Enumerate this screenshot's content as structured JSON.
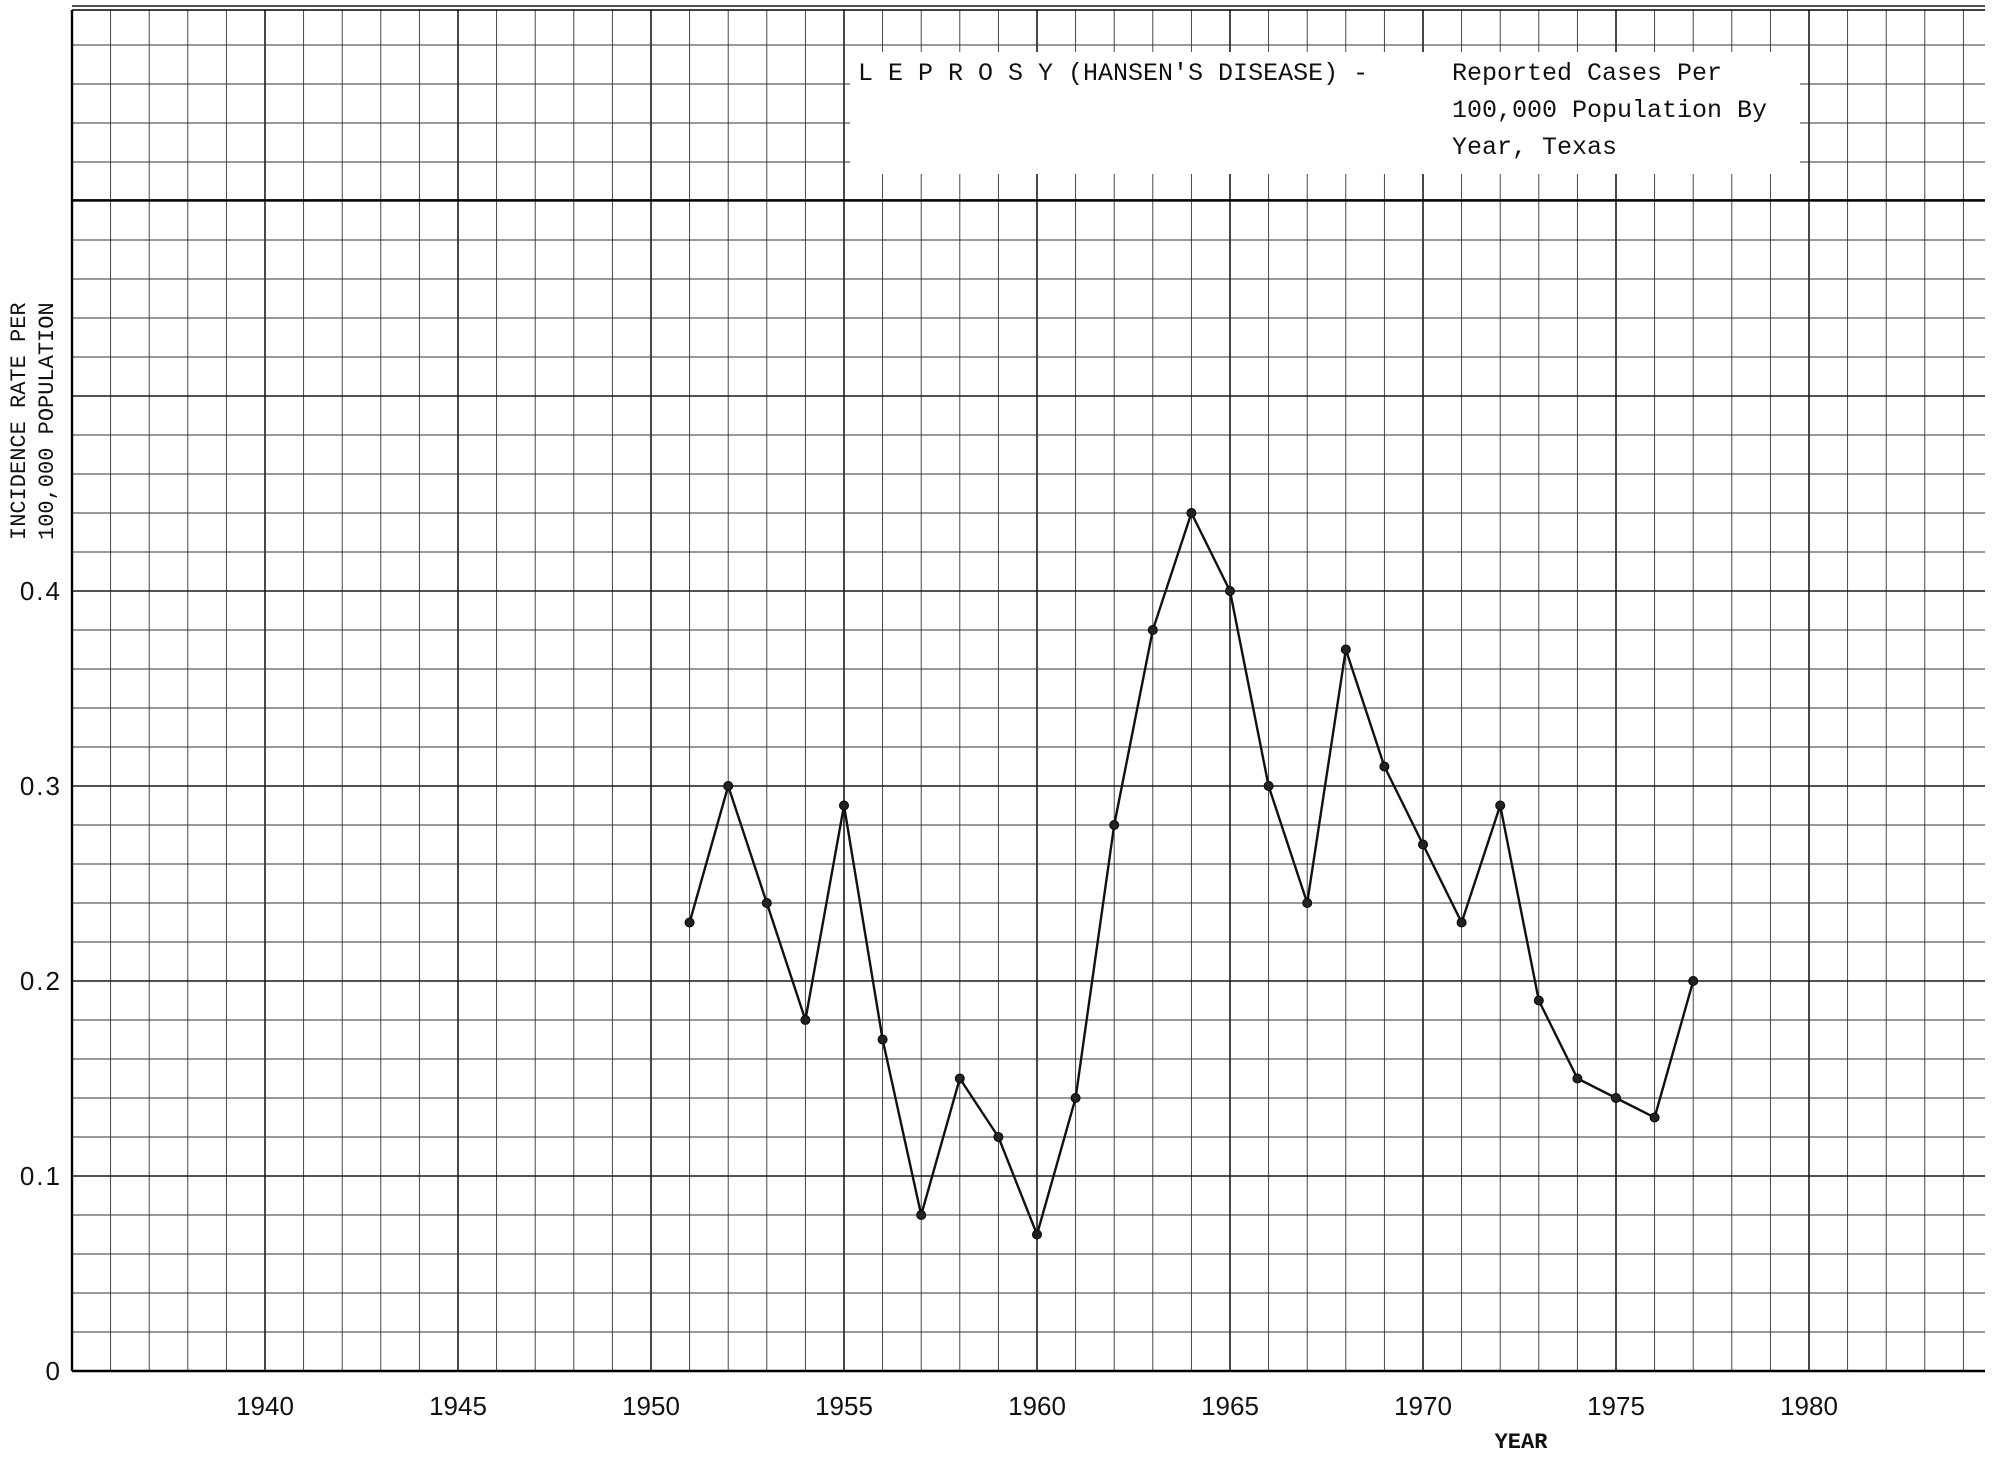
{
  "chart_data": {
    "type": "line",
    "title": "L E P R O S Y (HANSEN'S DISEASE)  -",
    "subtitle_lines": [
      "Reported Cases Per",
      "100,000 Population By",
      "Year, Texas"
    ],
    "xlabel": "YEAR",
    "ylabel_lines": [
      "INCIDENCE RATE PER",
      "100,000 POPULATION"
    ],
    "x_ticks": [
      1940,
      1945,
      1950,
      1955,
      1960,
      1965,
      1970,
      1975,
      1980
    ],
    "y_ticks": [
      0,
      0.1,
      0.2,
      0.3,
      0.4
    ],
    "y_tick_labels": [
      "0",
      "0.1",
      "0.2",
      "0.3",
      "0.4"
    ],
    "xlim": [
      1935,
      1985
    ],
    "ylim": [
      0,
      0.7
    ],
    "grid": true,
    "x": [
      1951,
      1952,
      1953,
      1954,
      1955,
      1956,
      1957,
      1958,
      1959,
      1960,
      1961,
      1962,
      1963,
      1964,
      1965,
      1966,
      1967,
      1968,
      1969,
      1970,
      1971,
      1972,
      1973,
      1974,
      1975,
      1976,
      1977
    ],
    "values": [
      0.23,
      0.3,
      0.24,
      0.18,
      0.29,
      0.17,
      0.08,
      0.15,
      0.12,
      0.07,
      0.14,
      0.28,
      0.38,
      0.44,
      0.4,
      0.3,
      0.24,
      0.37,
      0.31,
      0.27,
      0.23,
      0.29,
      0.19,
      0.15,
      0.14,
      0.13,
      0.2
    ],
    "colors": {
      "line": "#111111",
      "grid": "#1a1a1a",
      "background": "#ffffff"
    }
  }
}
